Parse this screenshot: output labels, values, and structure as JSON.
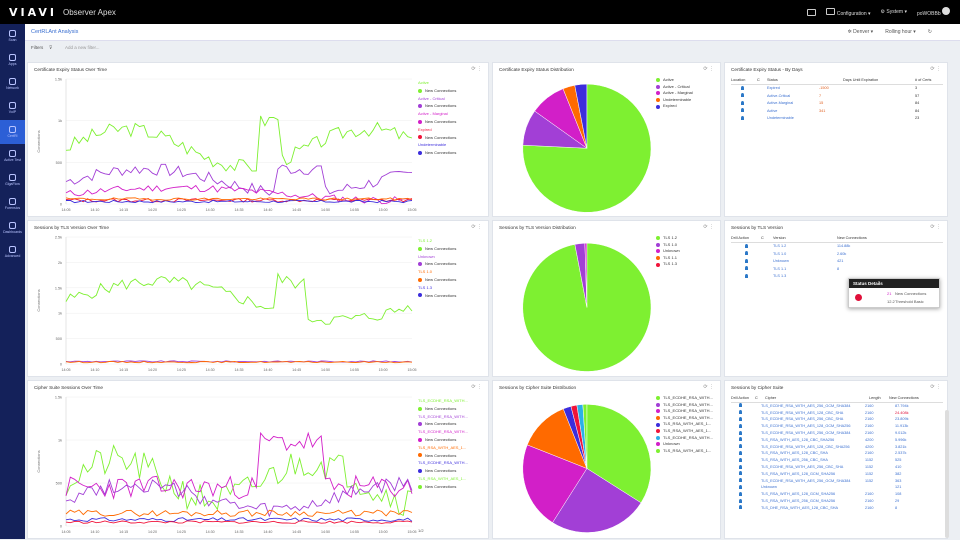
{
  "header": {
    "logo": "VIAVI",
    "app": "Observer Apex",
    "config": "Configuration",
    "system": "System",
    "user": "poWOBBb"
  },
  "nav": [
    {
      "label": "Scan"
    },
    {
      "label": "Apps"
    },
    {
      "label": "Network"
    },
    {
      "label": "VoIP"
    },
    {
      "label": "CertRl"
    },
    {
      "label": "Active Test"
    },
    {
      "label": "GigaFlow"
    },
    {
      "label": "Forensics"
    },
    {
      "label": "Dashboards"
    },
    {
      "label": "Advanced"
    }
  ],
  "page": {
    "title": "CertRLAnt Analysis",
    "server": "Denver",
    "range": "Rolling hour",
    "filters": "Filters",
    "add_filter": "Add a new filter..."
  },
  "colors": {
    "green": "#7ef031",
    "purple": "#a23fd6",
    "magenta": "#d21fc8",
    "orange": "#ff6a00",
    "red": "#f0143a",
    "blue": "#3c2ddc",
    "lime": "#7ef031"
  },
  "panels": {
    "p1": {
      "title": "Certificate Expiry Status Over Time",
      "ylabel": "Connections",
      "yticks": [
        "1.5k",
        "1k",
        "500",
        "0"
      ],
      "xticks": [
        "14:05",
        "14:10",
        "14:15",
        "14:20",
        "14:25",
        "14:30",
        "14:35",
        "14:40",
        "14:45",
        "14:50",
        "14:55",
        "15:00",
        "15:05"
      ],
      "legend": [
        {
          "name": "Active",
          "sub": "New Connections",
          "color": "#7ef031"
        },
        {
          "name": "Active - Critical",
          "sub": "New Connections",
          "color": "#a23fd6"
        },
        {
          "name": "Active - Marginal",
          "sub": "New Connections",
          "color": "#d21fc8"
        },
        {
          "name": "Expired",
          "sub": "New Connections",
          "color": "#f0143a"
        },
        {
          "name": "Undeterminable",
          "sub": "New Connections",
          "color": "#3c2ddc"
        }
      ]
    },
    "p2": {
      "title": "Certificate Expiry Status Distribution",
      "legend": [
        {
          "name": "Active",
          "color": "#7ef031"
        },
        {
          "name": "Active - Critical",
          "color": "#a23fd6"
        },
        {
          "name": "Active - Marginal",
          "color": "#d21fc8"
        },
        {
          "name": "Undeterminable",
          "color": "#ff6a00"
        },
        {
          "name": "Expired",
          "color": "#3c2ddc"
        }
      ],
      "slices": [
        {
          "value": 75,
          "color": "#7ef031"
        },
        {
          "value": 9,
          "color": "#a23fd6"
        },
        {
          "value": 9,
          "color": "#d21fc8"
        },
        {
          "value": 3,
          "color": "#ff6a00"
        },
        {
          "value": 3,
          "color": "#3c2ddc"
        }
      ]
    },
    "p3": {
      "title": "Certificate Expiry Status - By Days",
      "headers": [
        "Location",
        "C",
        "Status",
        "",
        "Days Until Expiration",
        "",
        "# of Certs"
      ],
      "rows": [
        [
          "Expired",
          "-1500",
          "",
          "3"
        ],
        [
          "Active-Critical",
          "7",
          "",
          "57"
        ],
        [
          "Active-Marginal",
          "15",
          "",
          "84"
        ],
        [
          "Active",
          "341",
          "",
          "84"
        ],
        [
          "Undeterminable",
          "",
          "",
          "23"
        ]
      ]
    },
    "p4": {
      "title": "Sessions by TLS Version Over Time",
      "ylabel": "Connections",
      "yticks": [
        "2.5k",
        "2k",
        "1.5k",
        "1k",
        "500",
        "0"
      ],
      "xticks": [
        "14:05",
        "14:10",
        "14:15",
        "14:20",
        "14:25",
        "14:30",
        "14:35",
        "14:40",
        "14:45",
        "14:50",
        "14:55",
        "15:00",
        "15:05"
      ],
      "legend": [
        {
          "name": "TLS 1.2",
          "sub": "New Connections",
          "color": "#7ef031"
        },
        {
          "name": "Unknown",
          "sub": "New Connections",
          "color": "#a23fd6"
        },
        {
          "name": "TLS 1.0",
          "sub": "New Connections",
          "color": "#ff6a00"
        },
        {
          "name": "TLS 1.3",
          "sub": "New Connections",
          "color": "#3c2ddc"
        }
      ]
    },
    "p5": {
      "title": "Sessions by TLS Version Distribution",
      "legend": [
        {
          "name": "TLS 1.2",
          "color": "#7ef031"
        },
        {
          "name": "TLS 1.0",
          "color": "#a23fd6"
        },
        {
          "name": "Unknown",
          "color": "#d21fc8"
        },
        {
          "name": "TLS 1.1",
          "color": "#ff6a00"
        },
        {
          "name": "TLS 1.3",
          "color": "#f0143a"
        }
      ],
      "slices": [
        {
          "value": 97,
          "color": "#7ef031"
        },
        {
          "value": 2.5,
          "color": "#a23fd6"
        },
        {
          "value": 0.5,
          "color": "#d21fc8"
        }
      ]
    },
    "p6": {
      "title": "Sessions by TLS Version",
      "headers": [
        "Drill Action",
        "C",
        "Version",
        "",
        "New Connections"
      ],
      "rows": [
        [
          "TLS 1.2",
          "114.88k"
        ],
        [
          "TLS 1.0",
          "2.60k"
        ],
        [
          "Unknown",
          "421"
        ],
        [
          "TLS 1.1",
          "8"
        ],
        [
          "TLS 1.3",
          ""
        ]
      ]
    },
    "p7": {
      "title": "Cipher Suite Sessions Over Time",
      "ylabel": "Connections",
      "yticks": [
        "1.5k",
        "1k",
        "500",
        "0"
      ],
      "xticks": [
        "14:05",
        "14:10",
        "14:15",
        "14:20",
        "14:25",
        "14:30",
        "14:35",
        "14:40",
        "14:45",
        "14:50",
        "14:55",
        "15:00",
        "15:05"
      ],
      "legend": [
        {
          "name": "TLS_ECDHE_RSA_WITH...",
          "sub": "New Connections",
          "color": "#7ef031"
        },
        {
          "name": "TLS_ECDHE_RSA_WITH...",
          "sub": "New Connections",
          "color": "#a23fd6"
        },
        {
          "name": "TLS_ECDHE_RSA_WITH...",
          "sub": "New Connections",
          "color": "#d21fc8"
        },
        {
          "name": "TLS_RSA_WITH_AES_1...",
          "sub": "New Connections",
          "color": "#ff6a00"
        },
        {
          "name": "TLS_ECDHE_RSA_WITH...",
          "sub": "New Connections",
          "color": "#3c2ddc"
        },
        {
          "name": "TLS_RSA_WITH_AES_1...",
          "sub": "New Connections",
          "color": "#7ef031"
        }
      ],
      "pager": "1/2"
    },
    "p8": {
      "title": "Sessions by Cipher Suite Distribution",
      "legend": [
        {
          "name": "TLS_ECDHE_RSA_WITH...",
          "color": "#7ef031"
        },
        {
          "name": "TLS_ECDHE_RSA_WITH...",
          "color": "#a23fd6"
        },
        {
          "name": "TLS_ECDHE_RSA_WITH...",
          "color": "#d21fc8"
        },
        {
          "name": "TLS_ECDHE_RSA_WITH...",
          "color": "#ff6a00"
        },
        {
          "name": "TLS_RSA_WITH_AES_1...",
          "color": "#3c2ddc"
        },
        {
          "name": "TLS_RSA_WITH_AES_1...",
          "color": "#f0143a"
        },
        {
          "name": "TLS_ECDHE_RSA_WITH...",
          "color": "#2bb0e8"
        },
        {
          "name": "Unknown",
          "color": "#d21fc8"
        },
        {
          "name": "TLS_RSA_WITH_AES_1...",
          "color": "#7ef031"
        }
      ],
      "slices": [
        {
          "value": 34,
          "color": "#7ef031"
        },
        {
          "value": 25,
          "color": "#a23fd6"
        },
        {
          "value": 22,
          "color": "#d21fc8"
        },
        {
          "value": 13,
          "color": "#ff6a00"
        },
        {
          "value": 2,
          "color": "#3c2ddc"
        },
        {
          "value": 1.5,
          "color": "#f0143a"
        },
        {
          "value": 1.5,
          "color": "#2bb0e8"
        },
        {
          "value": 1,
          "color": "#7ef031"
        }
      ]
    },
    "p9": {
      "title": "Sessions by Cipher Suite",
      "headers": [
        "Drill Action",
        "C",
        "Cipher",
        "",
        "Length",
        "New Connections"
      ],
      "rows": [
        [
          "TLS_ECDHE_RSA_WITH_AES_256_GCM_SHA384",
          "2160",
          "87.794k"
        ],
        [
          "TLS_ECDHE_RSA_WITH_AES_128_CBC_SHA",
          "2160",
          "24.408k"
        ],
        [
          "TLS_ECDHE_RSA_WITH_AES_256_CBC_SHA",
          "2160",
          "23.809k"
        ],
        [
          "TLS_ECDHE_RSA_WITH_AES_128_GCM_SHA256",
          "2160",
          "11.913k"
        ],
        [
          "TLS_ECDHE_RSA_WITH_AES_256_GCM_SHA384",
          "2160",
          "9.012k"
        ],
        [
          "TLS_RSA_WITH_AES_128_CBC_SHA256",
          "4200",
          "5.996k"
        ],
        [
          "TLS_ECDHE_RSA_WITH_AES_128_CBC_SHA256",
          "4200",
          "3.821k"
        ],
        [
          "TLS_RSA_WITH_AES_128_CBC_SHA",
          "2160",
          "2.537k"
        ],
        [
          "TLS_RSA_WITH_AES_256_CBC_SHA",
          "1152",
          "525"
        ],
        [
          "TLS_ECDHE_RSA_WITH_AES_256_CBC_SHA",
          "1152",
          "410"
        ],
        [
          "TLS_RSA_WITH_AES_128_GCM_SHA256",
          "1152",
          "382"
        ],
        [
          "TLS_ECDHE_RSA_WITH_AES_256_GCM_SHA384",
          "1152",
          "363"
        ],
        [
          "Unknown",
          "",
          "121"
        ],
        [
          "TLS_RSA_WITH_AES_128_GCM_SHA256",
          "2160",
          "108"
        ],
        [
          "TLS_RSA_WITH_AES_256_GCM_SHA256",
          "2160",
          "29"
        ],
        [
          "TLS_DHE_RSA_WITH_AES_128_CBC_SHA",
          "2160",
          "8"
        ]
      ]
    }
  },
  "tooltip": {
    "title": "Status Details",
    "row1_num": "21",
    "row1_label": "New Connections",
    "row2_num": "12.2",
    "row2_label": "Threshold Basic"
  }
}
